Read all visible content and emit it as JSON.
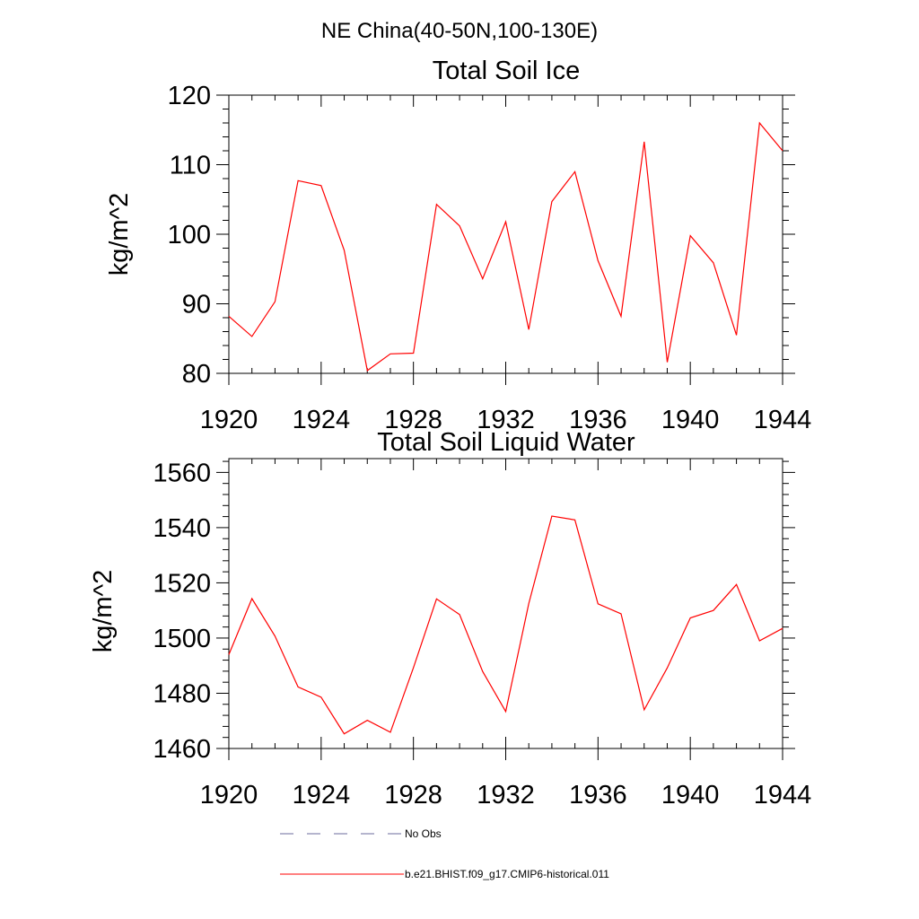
{
  "figure": {
    "title": "NE China(40-50N,100-130E)"
  },
  "chart_data": [
    {
      "type": "line",
      "title": "Total Soil Ice",
      "xlabel": "",
      "ylabel": "kg/m^2",
      "xlim": [
        1920,
        1944
      ],
      "ylim": [
        80,
        120
      ],
      "xticks": [
        1920,
        1924,
        1928,
        1932,
        1936,
        1940,
        1944
      ],
      "yticks": [
        80,
        90,
        100,
        110,
        120
      ],
      "x": [
        1920,
        1921,
        1922,
        1923,
        1924,
        1925,
        1926,
        1927,
        1928,
        1929,
        1930,
        1931,
        1932,
        1933,
        1934,
        1935,
        1936,
        1937,
        1938,
        1939,
        1940,
        1941,
        1942,
        1943,
        1944
      ],
      "series": [
        {
          "name": "b.e21.BHIST.f09_g17.CMIP6-historical.011",
          "color": "#ff0000",
          "values": [
            88.2,
            85.3,
            90.3,
            107.7,
            107.0,
            97.7,
            80.4,
            82.8,
            82.9,
            104.3,
            101.2,
            93.6,
            101.8,
            86.3,
            104.7,
            109.0,
            96.2,
            88.2,
            113.3,
            81.6,
            99.8,
            95.9,
            85.5,
            116.0,
            112.0
          ]
        }
      ]
    },
    {
      "type": "line",
      "title": "Total Soil Liquid Water",
      "xlabel": "",
      "ylabel": "kg/m^2",
      "xlim": [
        1920,
        1944
      ],
      "ylim": [
        1460,
        1565
      ],
      "xticks": [
        1920,
        1924,
        1928,
        1932,
        1936,
        1940,
        1944
      ],
      "yticks": [
        1460,
        1480,
        1500,
        1520,
        1540,
        1560
      ],
      "x": [
        1920,
        1921,
        1922,
        1923,
        1924,
        1925,
        1926,
        1927,
        1928,
        1929,
        1930,
        1931,
        1932,
        1933,
        1934,
        1935,
        1936,
        1937,
        1938,
        1939,
        1940,
        1941,
        1942,
        1943,
        1944
      ],
      "series": [
        {
          "name": "b.e21.BHIST.f09_g17.CMIP6-historical.011",
          "color": "#ff0000",
          "values": [
            1494,
            1514.3,
            1500.7,
            1482.3,
            1478.6,
            1465.3,
            1470.2,
            1465.9,
            1489.3,
            1514.2,
            1508.5,
            1487.9,
            1473.4,
            1512.5,
            1544.2,
            1542.8,
            1512.4,
            1508.8,
            1474,
            1489.2,
            1507.3,
            1510,
            1519.4,
            1499,
            1503.5
          ]
        }
      ]
    }
  ],
  "legend": {
    "entries": [
      {
        "label": "No Obs",
        "style": "dashed",
        "color": "#6b6b9e"
      },
      {
        "label": "b.e21.BHIST.f09_g17.CMIP6-historical.011",
        "style": "solid",
        "color": "#ff0000"
      }
    ]
  }
}
